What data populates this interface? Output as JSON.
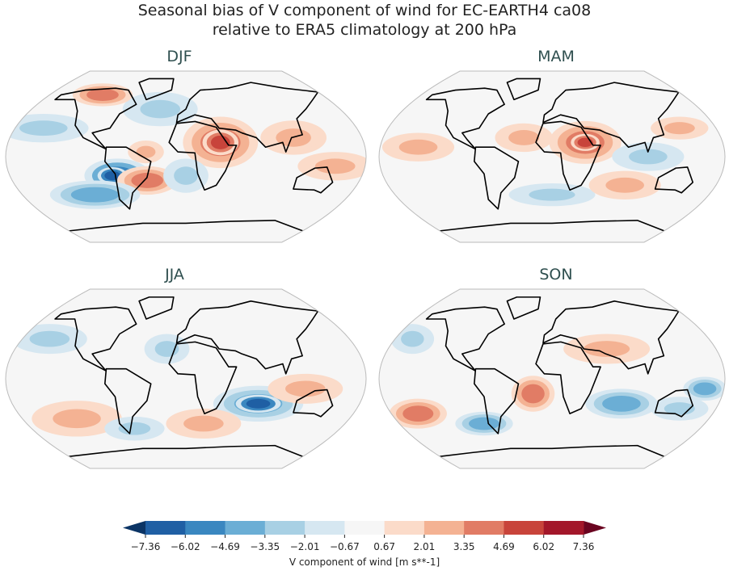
{
  "title_line1": "Seasonal bias of V component of wind for EC-EARTH4 ca08",
  "title_line2": "relative to ERA5 climatology at 200 hPa",
  "panels": [
    {
      "title": "DJF"
    },
    {
      "title": "MAM"
    },
    {
      "title": "JJA"
    },
    {
      "title": "SON"
    }
  ],
  "chart_data": {
    "type": "heatmap",
    "projection": "Robinson",
    "colorbar": {
      "label": "V component of wind [m s**-1]",
      "ticks": [
        "-7.36",
        "-6.02",
        "-4.69",
        "-3.35",
        "-2.01",
        "-0.67",
        "0.67",
        "2.01",
        "3.35",
        "4.69",
        "6.02",
        "7.36"
      ],
      "levels": [
        -7.36,
        -6.02,
        -4.69,
        -3.35,
        -2.01,
        -0.67,
        0.67,
        2.01,
        3.35,
        4.69,
        6.02,
        7.36
      ],
      "colors": [
        "#1f5fa4",
        "#3a87c0",
        "#6baed5",
        "#a8d0e4",
        "#d6e7f1",
        "#f6f6f6",
        "#fbdbc9",
        "#f4b293",
        "#e17c65",
        "#c8443b",
        "#a3172a"
      ],
      "under_color": "#0b3465",
      "over_color": "#6a0420",
      "extend": "both",
      "orientation": "horizontal"
    }
  }
}
